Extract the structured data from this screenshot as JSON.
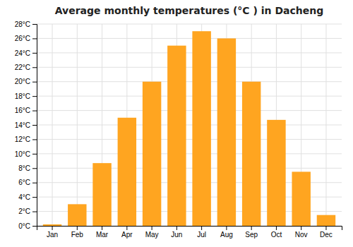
{
  "chart_data": {
    "type": "bar",
    "title": "Average monthly temperatures (°C ) in Dacheng",
    "categories": [
      "Jan",
      "Feb",
      "Mar",
      "Apr",
      "May",
      "Jun",
      "Jul",
      "Aug",
      "Sep",
      "Oct",
      "Nov",
      "Dec"
    ],
    "values": [
      0.2,
      3.0,
      8.7,
      15.0,
      20.0,
      25.0,
      27.0,
      26.0,
      20.0,
      14.7,
      7.5,
      1.5
    ],
    "color": "#FFA520",
    "ylim": [
      0,
      28
    ],
    "yticks": [
      {
        "value": 0,
        "label": "0°C"
      },
      {
        "value": 2,
        "label": "2°C"
      },
      {
        "value": 4,
        "label": "4°C"
      },
      {
        "value": 6,
        "label": "6°C"
      },
      {
        "value": 8,
        "label": "8°C"
      },
      {
        "value": 10,
        "label": "10°C"
      },
      {
        "value": 12,
        "label": "12°C"
      },
      {
        "value": 14,
        "label": "14°C"
      },
      {
        "value": 16,
        "label": "16°C"
      },
      {
        "value": 18,
        "label": "18°C"
      },
      {
        "value": 20,
        "label": "20°C"
      },
      {
        "value": 22,
        "label": "22°C"
      },
      {
        "value": 24,
        "label": "24°C"
      },
      {
        "value": 26,
        "label": "26°C"
      },
      {
        "value": 28,
        "label": "28°C"
      }
    ],
    "grid": true
  }
}
